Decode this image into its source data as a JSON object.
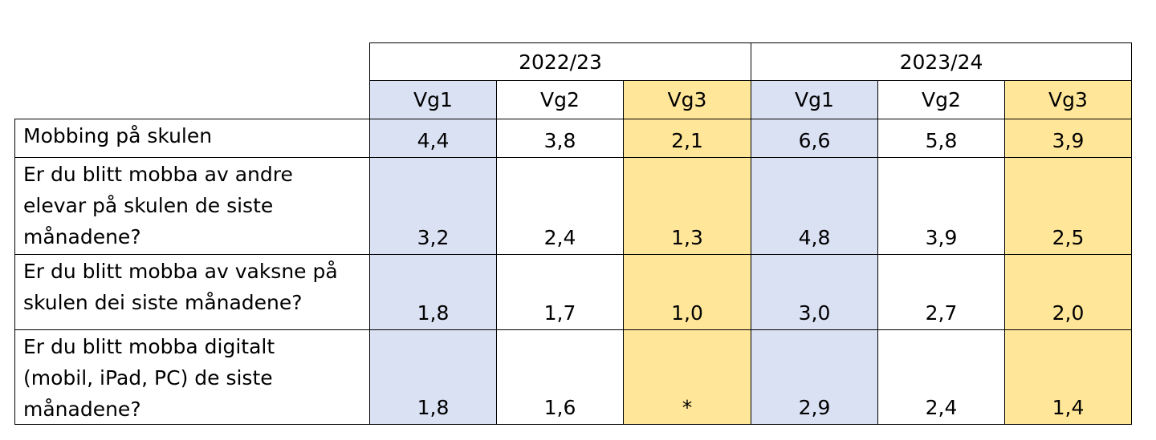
{
  "years": [
    "2022/23",
    "2023/24"
  ],
  "grades": [
    "Vg1",
    "Vg2",
    "Vg3"
  ],
  "colors": {
    "vg1": "#dae1f3",
    "vg2": "#ffffff",
    "vg3": "#ffe699"
  },
  "rows": [
    {
      "label": "Mobbing på skulen",
      "values": [
        "4,4",
        "3,8",
        "2,1",
        "6,6",
        "5,8",
        "3,9"
      ]
    },
    {
      "label": "Er du blitt mobba av andre\nelevar på skulen de siste\nmånadene?",
      "values": [
        "3,2",
        "2,4",
        "1,3",
        "4,8",
        "3,9",
        "2,5"
      ]
    },
    {
      "label": "Er du blitt mobba av vaksne på\nskulen dei siste månadene?",
      "values": [
        "1,8",
        "1,7",
        "1,0",
        "3,0",
        "2,7",
        "2,0"
      ]
    },
    {
      "label": "Er du blitt mobba digitalt\n(mobil, iPad, PC) de siste\nmånadene?",
      "values": [
        "1,8",
        "1,6",
        "*",
        "2,9",
        "2,4",
        "1,4"
      ]
    }
  ]
}
